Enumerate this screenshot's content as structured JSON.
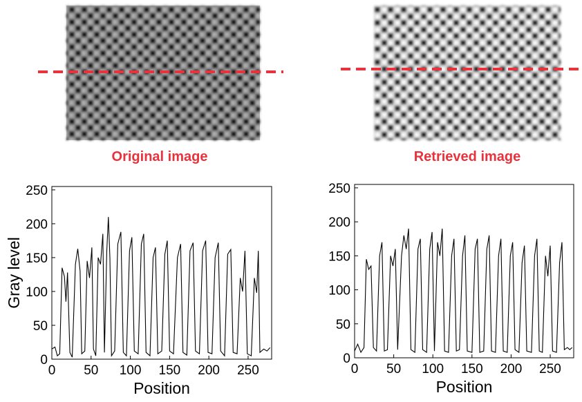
{
  "images": [
    {
      "caption": "Original image"
    },
    {
      "caption": "Retrieved image"
    }
  ],
  "chart_data": [
    {
      "type": "line",
      "xlabel": "Position",
      "ylabel": "Gray level",
      "color": "#000000",
      "xlim": [
        0,
        280
      ],
      "ylim": [
        0,
        255
      ],
      "xticks": [
        0,
        50,
        100,
        150,
        200,
        250
      ],
      "yticks": [
        0,
        50,
        100,
        150,
        200,
        250
      ],
      "x": [
        0,
        4,
        7,
        10,
        13,
        16,
        18,
        20,
        23,
        26,
        30,
        33,
        36,
        38,
        42,
        45,
        48,
        51,
        53,
        56,
        59,
        62,
        65,
        67,
        70,
        72,
        74,
        76,
        80,
        84,
        88,
        91,
        95,
        99,
        102,
        105,
        110,
        114,
        117,
        120,
        125,
        129,
        132,
        135,
        140,
        144,
        147,
        150,
        155,
        160,
        164,
        167,
        172,
        176,
        180,
        183,
        188,
        192,
        196,
        199,
        204,
        208,
        212,
        215,
        220,
        224,
        228,
        231,
        236,
        240,
        243,
        246,
        249,
        254,
        258,
        261,
        263,
        265,
        270,
        274,
        278
      ],
      "values": [
        15,
        18,
        5,
        8,
        135,
        122,
        85,
        128,
        10,
        3,
        140,
        163,
        130,
        8,
        12,
        145,
        120,
        165,
        15,
        5,
        150,
        140,
        185,
        10,
        160,
        210,
        150,
        5,
        12,
        170,
        188,
        10,
        5,
        160,
        180,
        12,
        8,
        170,
        185,
        10,
        5,
        150,
        165,
        8,
        12,
        155,
        175,
        12,
        8,
        150,
        170,
        10,
        6,
        160,
        172,
        12,
        8,
        160,
        175,
        10,
        8,
        150,
        172,
        12,
        5,
        155,
        162,
        10,
        8,
        120,
        100,
        160,
        8,
        5,
        120,
        98,
        160,
        10,
        15,
        12,
        17
      ]
    },
    {
      "type": "line",
      "xlabel": "Position",
      "color": "#000000",
      "xlim": [
        0,
        280
      ],
      "ylim": [
        0,
        255
      ],
      "xticks": [
        0,
        50,
        100,
        150,
        200,
        250
      ],
      "yticks": [
        0,
        50,
        100,
        150,
        200,
        250
      ],
      "x": [
        0,
        4,
        8,
        12,
        15,
        18,
        21,
        24,
        28,
        32,
        35,
        38,
        42,
        46,
        49,
        52,
        55,
        60,
        63,
        66,
        69,
        72,
        77,
        81,
        84,
        87,
        92,
        96,
        99,
        102,
        106,
        109,
        112,
        115,
        120,
        124,
        127,
        130,
        134,
        138,
        141,
        144,
        150,
        154,
        157,
        160,
        165,
        169,
        172,
        175,
        180,
        184,
        187,
        190,
        195,
        199,
        202,
        205,
        210,
        214,
        217,
        220,
        226,
        230,
        233,
        236,
        240,
        244,
        247,
        250,
        253,
        258,
        262,
        265,
        268,
        272,
        275,
        278
      ],
      "values": [
        10,
        20,
        8,
        15,
        145,
        130,
        135,
        15,
        10,
        150,
        170,
        10,
        12,
        150,
        135,
        160,
        12,
        150,
        180,
        160,
        190,
        12,
        8,
        160,
        175,
        12,
        8,
        160,
        185,
        10,
        170,
        150,
        190,
        10,
        8,
        150,
        175,
        10,
        12,
        150,
        180,
        10,
        8,
        160,
        175,
        8,
        10,
        160,
        180,
        10,
        8,
        150,
        175,
        10,
        8,
        150,
        170,
        12,
        8,
        140,
        165,
        10,
        8,
        150,
        175,
        10,
        8,
        150,
        120,
        165,
        10,
        8,
        140,
        170,
        12,
        15,
        12,
        15
      ]
    }
  ]
}
